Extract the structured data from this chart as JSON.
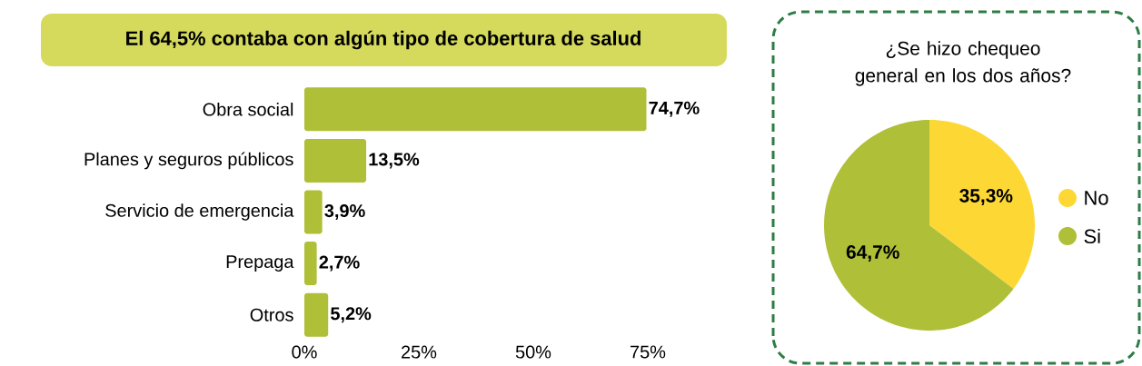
{
  "chart_data": [
    {
      "type": "bar",
      "orientation": "horizontal",
      "title": "El 64,5% contaba con algún tipo de cobertura de salud",
      "categories": [
        "Obra social",
        "Planes y seguros públicos",
        "Servicio de emergencia",
        "Prepaga",
        "Otros"
      ],
      "values": [
        74.7,
        13.5,
        3.9,
        2.7,
        5.2
      ],
      "value_labels": [
        "74,7%",
        "13,5%",
        "3,9%",
        "2,7%",
        "5,2%"
      ],
      "color": "#afbf37",
      "xlim": [
        0,
        75
      ],
      "xticks": [
        {
          "value": 0,
          "label": "0%"
        },
        {
          "value": 25,
          "label": "25%"
        },
        {
          "value": 50,
          "label": "50%"
        },
        {
          "value": 75,
          "label": "75%"
        }
      ]
    },
    {
      "type": "pie",
      "title": "¿Se hizo chequeo general en los dos años?",
      "categories": [
        "No",
        "Si"
      ],
      "values": [
        35.3,
        64.7
      ],
      "value_labels": [
        "35,3%",
        "64,7%"
      ],
      "colors": [
        "#fdd835",
        "#afbf37"
      ],
      "legend": "right"
    }
  ]
}
